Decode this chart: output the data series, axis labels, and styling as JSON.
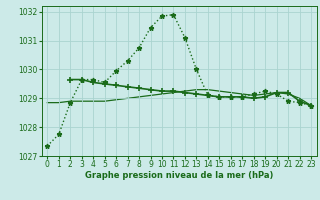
{
  "title": "Graphe pression niveau de la mer (hPa)",
  "bg_color": "#cceae8",
  "grid_color": "#aad4d0",
  "line_color": "#1a6b1a",
  "text_color": "#1a6b1a",
  "xlim": [
    -0.5,
    23.5
  ],
  "ylim": [
    1027,
    1032.2
  ],
  "yticks": [
    1027,
    1028,
    1029,
    1030,
    1031,
    1032
  ],
  "xticks": [
    0,
    1,
    2,
    3,
    4,
    5,
    6,
    7,
    8,
    9,
    10,
    11,
    12,
    13,
    14,
    15,
    16,
    17,
    18,
    19,
    20,
    21,
    22,
    23
  ],
  "line1_x": [
    0,
    1,
    2,
    3,
    4,
    5,
    6,
    7,
    8,
    9,
    10,
    11,
    12,
    13,
    14,
    15,
    16,
    17,
    18,
    19,
    20,
    21,
    22,
    23
  ],
  "line1_y": [
    1027.35,
    1027.75,
    1028.85,
    1029.65,
    1029.65,
    1029.55,
    1029.95,
    1030.3,
    1030.75,
    1031.45,
    1031.85,
    1031.9,
    1031.1,
    1030.0,
    1029.1,
    1029.05,
    1029.05,
    1029.05,
    1029.15,
    1029.25,
    1029.15,
    1028.9,
    1028.85,
    1028.75
  ],
  "line2_x": [
    2,
    3,
    4,
    5,
    6,
    7,
    8,
    9,
    10,
    11,
    12,
    13,
    14,
    15,
    16,
    17,
    18,
    19,
    20,
    21,
    22,
    23
  ],
  "line2_y": [
    1029.65,
    1029.65,
    1029.55,
    1029.5,
    1029.45,
    1029.4,
    1029.35,
    1029.3,
    1029.25,
    1029.25,
    1029.2,
    1029.15,
    1029.1,
    1029.05,
    1029.05,
    1029.05,
    1029.0,
    1029.05,
    1029.2,
    1029.2,
    1028.9,
    1028.75
  ],
  "line3_x": [
    0,
    1,
    2,
    3,
    4,
    5,
    6,
    7,
    8,
    9,
    10,
    11,
    12,
    13,
    14,
    15,
    16,
    17,
    18,
    19,
    20,
    21,
    22,
    23
  ],
  "line3_y": [
    1028.85,
    1028.85,
    1028.9,
    1028.9,
    1028.9,
    1028.9,
    1028.95,
    1029.0,
    1029.05,
    1029.1,
    1029.15,
    1029.2,
    1029.25,
    1029.3,
    1029.3,
    1029.25,
    1029.2,
    1029.15,
    1029.1,
    1029.15,
    1029.2,
    1029.15,
    1029.0,
    1028.75
  ]
}
